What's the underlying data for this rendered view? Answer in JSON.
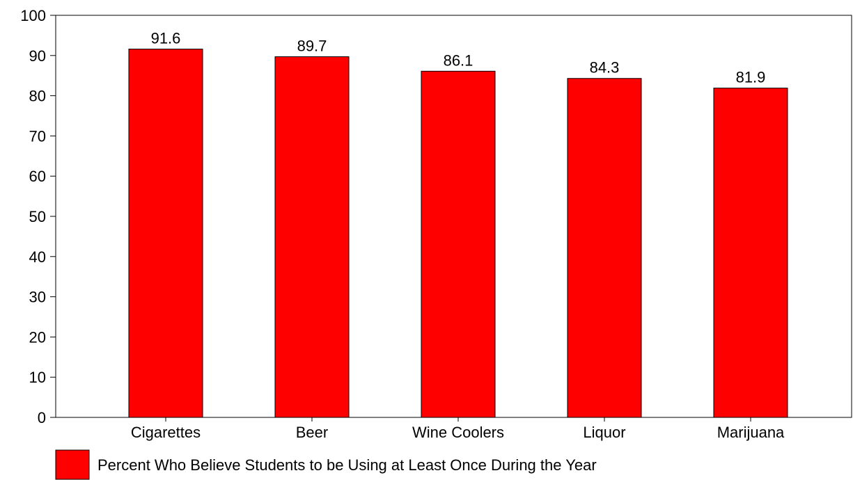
{
  "chart_data": {
    "type": "bar",
    "title": "",
    "xlabel": "",
    "ylabel": "",
    "categories": [
      "Cigarettes",
      "Beer",
      "Wine Coolers",
      "Liquor",
      "Marijuana"
    ],
    "series": [
      {
        "name": "Percent Who Believe Students to be Using at Least Once During the Year",
        "values": [
          91.6,
          89.7,
          86.1,
          84.3,
          81.9
        ],
        "value_labels": [
          "91.6",
          "89.7",
          "86.1",
          "84.3",
          "81.9"
        ],
        "color": "#ff0000"
      }
    ],
    "ylim": [
      0,
      100
    ],
    "yticks": [
      "0",
      "10",
      "20",
      "30",
      "40",
      "50",
      "60",
      "70",
      "80",
      "90",
      "100"
    ],
    "grid": false,
    "legend_position": "bottom-left"
  }
}
